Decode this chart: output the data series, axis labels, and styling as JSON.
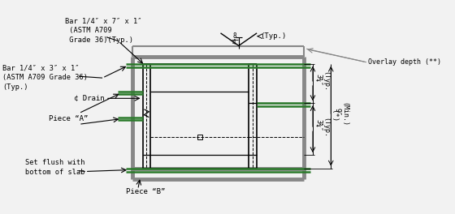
{
  "bg_color": "#f2f2f2",
  "line_color": "#000000",
  "gray_line_color": "#888888",
  "green_line_color": "#2a7a2a",
  "figsize": [
    5.6,
    2.64
  ],
  "dpi": 100,
  "texts": {
    "bar_top_label": "Bar 1/4″ x 7″ x 1″\n (ASTM A709\n Grade 36)(Typ.)",
    "bar_left_label": "Bar 1/4″ x 3″ x 1″\n(ASTM A709 Grade 36)\n(Typ.)",
    "cl_drain": "¢ Drain",
    "piece_a": "Piece “A”",
    "piece_b": "Piece “B”",
    "set_flush": "Set flush with\nbottom of slab",
    "overlay_depth": "Overlay depth (**)",
    "typ_top_right": "(Typ.)",
    "dim_3_34_top": "3¾″",
    "typ_top": "(Typ.",
    "dim_3_34_bot": "3¾″",
    "typ_bot": "(Typ.",
    "dim_9": "9″",
    "min_label": "(Min.)",
    "star_label": "(*)"
  }
}
